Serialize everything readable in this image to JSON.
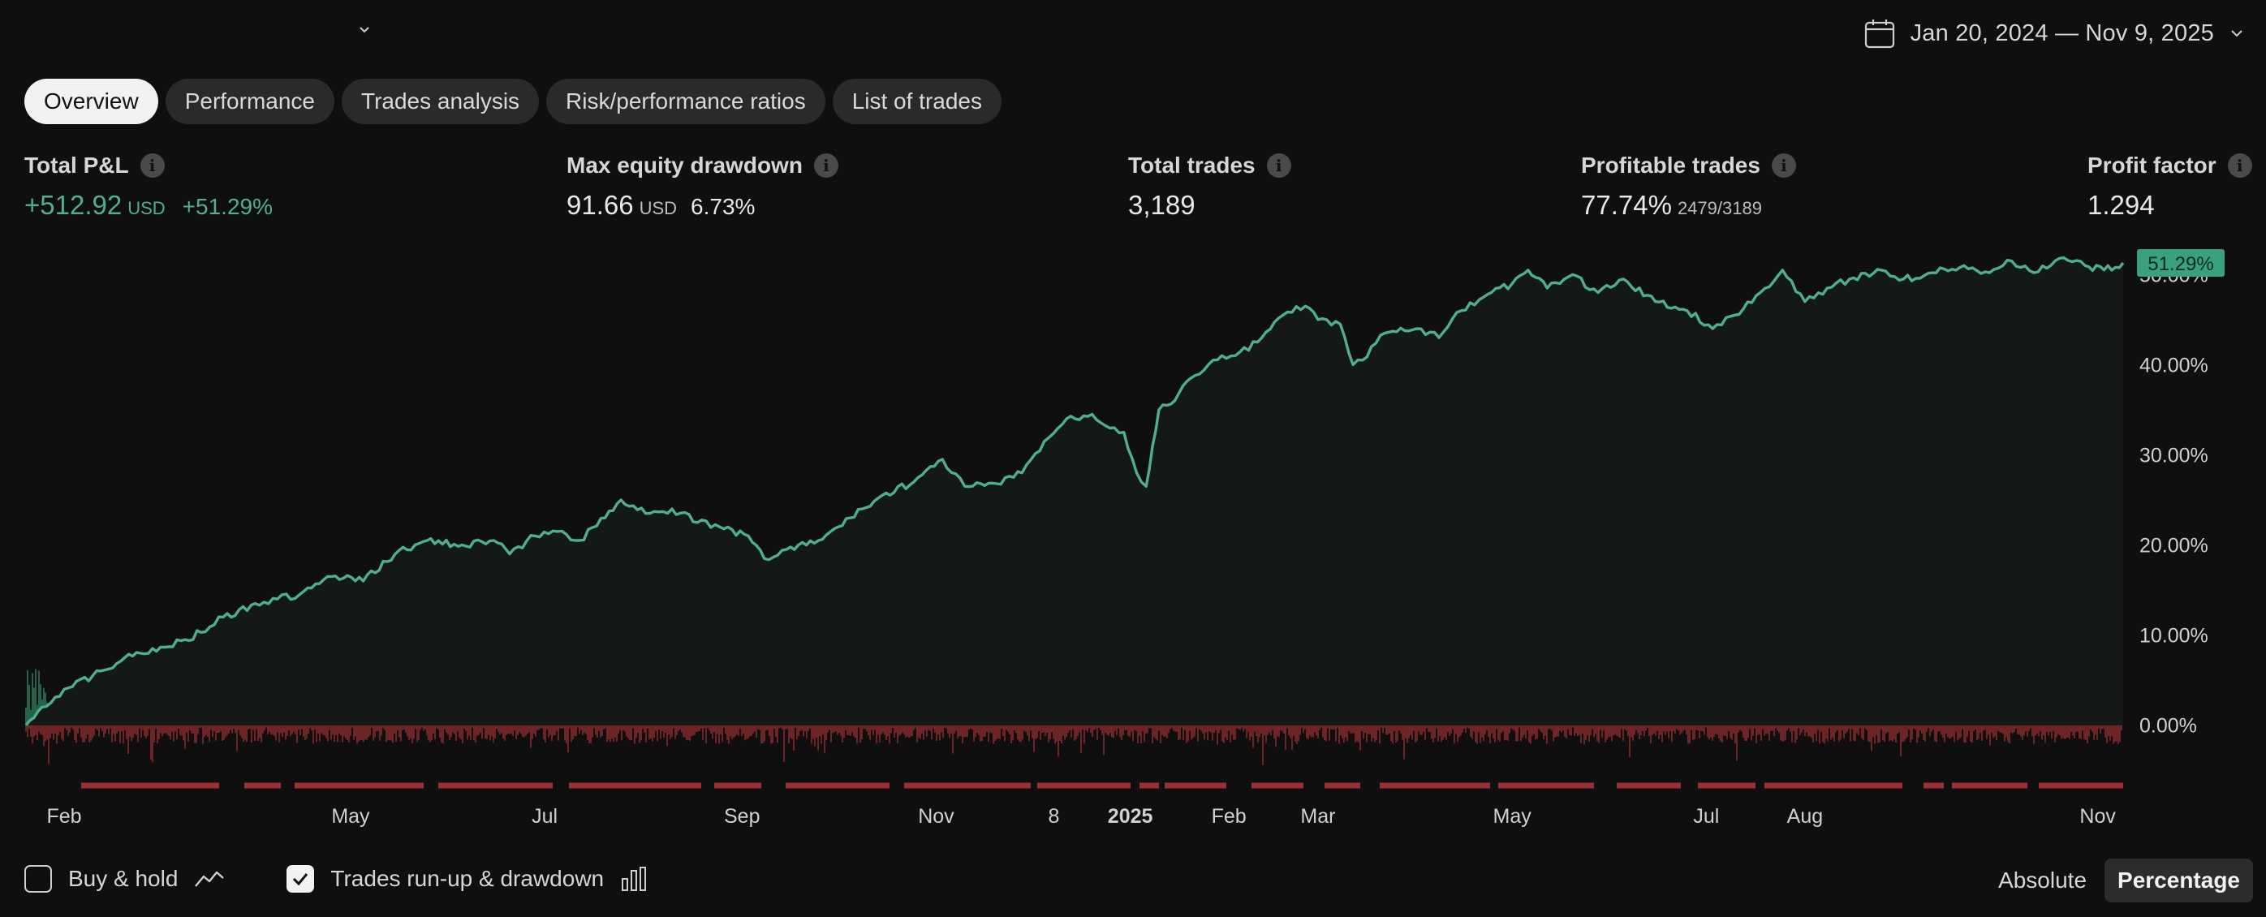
{
  "header": {
    "date_range": "Jan 20, 2024 — Nov 9, 2025"
  },
  "tabs": [
    {
      "label": "Overview",
      "active": true
    },
    {
      "label": "Performance",
      "active": false
    },
    {
      "label": "Trades analysis",
      "active": false
    },
    {
      "label": "Risk/performance ratios",
      "active": false
    },
    {
      "label": "List of trades",
      "active": false
    }
  ],
  "metrics": {
    "total_pnl": {
      "label": "Total P&L",
      "value": "+512.92",
      "unit": "USD",
      "pct": "+51.29%"
    },
    "max_drawdown": {
      "label": "Max equity drawdown",
      "value": "91.66",
      "unit": "USD",
      "pct": "6.73%"
    },
    "total_trades": {
      "label": "Total trades",
      "value": "3,189"
    },
    "profitable_trades": {
      "label": "Profitable trades",
      "value": "77.74%",
      "ratio": "2479/3189"
    },
    "profit_factor": {
      "label": "Profit factor",
      "value": "1.294"
    }
  },
  "colors": {
    "equity_line": "#4fae8e",
    "equity_fill": "#141917",
    "runup": "#2f8a6a",
    "drawdown": "#9a2f33",
    "badge_bg": "#3aa17f",
    "background": "#0f0f0f"
  },
  "chart_data": {
    "type": "line",
    "series": [
      {
        "values": [
          [
            "2024-01-20",
            0.0
          ],
          [
            "2024-01-25",
            2.0
          ],
          [
            "2024-02-01",
            4.0
          ],
          [
            "2024-02-10",
            5.5
          ],
          [
            "2024-02-20",
            7.5
          ],
          [
            "2024-03-01",
            8.2
          ],
          [
            "2024-03-10",
            9.5
          ],
          [
            "2024-03-15",
            10.3
          ],
          [
            "2024-03-22",
            12.0
          ],
          [
            "2024-04-01",
            13.5
          ],
          [
            "2024-04-08",
            14.0
          ],
          [
            "2024-04-15",
            14.5
          ],
          [
            "2024-04-25",
            16.5
          ],
          [
            "2024-05-05",
            16.0
          ],
          [
            "2024-05-15",
            19.0
          ],
          [
            "2024-05-25",
            20.5
          ],
          [
            "2024-06-05",
            20.0
          ],
          [
            "2024-06-15",
            20.5
          ],
          [
            "2024-06-20",
            19.0
          ],
          [
            "2024-06-28",
            21.0
          ],
          [
            "2024-07-05",
            21.5
          ],
          [
            "2024-07-12",
            20.5
          ],
          [
            "2024-07-20",
            23.0
          ],
          [
            "2024-07-25",
            25.0
          ],
          [
            "2024-08-03",
            23.5
          ],
          [
            "2024-08-10",
            24.0
          ],
          [
            "2024-08-18",
            22.5
          ],
          [
            "2024-08-25",
            22.0
          ],
          [
            "2024-09-03",
            21.0
          ],
          [
            "2024-09-08",
            18.5
          ],
          [
            "2024-09-15",
            19.5
          ],
          [
            "2024-09-25",
            20.5
          ],
          [
            "2024-10-05",
            23.0
          ],
          [
            "2024-10-15",
            25.5
          ],
          [
            "2024-10-25",
            27.0
          ],
          [
            "2024-11-03",
            29.5
          ],
          [
            "2024-11-10",
            26.5
          ],
          [
            "2024-11-20",
            26.8
          ],
          [
            "2024-11-28",
            28.0
          ],
          [
            "2024-12-05",
            31.5
          ],
          [
            "2024-12-12",
            34.0
          ],
          [
            "2024-12-20",
            34.5
          ],
          [
            "2024-12-27",
            33.0
          ],
          [
            "2024-12-30",
            32.5
          ],
          [
            "2025-01-03",
            28.0
          ],
          [
            "2025-01-06",
            26.5
          ],
          [
            "2025-01-08",
            31.0
          ],
          [
            "2025-01-10",
            35.0
          ],
          [
            "2025-01-15",
            36.0
          ],
          [
            "2025-01-20",
            38.5
          ],
          [
            "2025-01-27",
            40.5
          ],
          [
            "2025-02-03",
            41.0
          ],
          [
            "2025-02-10",
            42.5
          ],
          [
            "2025-02-18",
            45.5
          ],
          [
            "2025-02-25",
            46.5
          ],
          [
            "2025-03-01",
            45.0
          ],
          [
            "2025-03-08",
            44.5
          ],
          [
            "2025-03-12",
            40.0
          ],
          [
            "2025-03-15",
            40.5
          ],
          [
            "2025-03-22",
            43.5
          ],
          [
            "2025-04-01",
            44.0
          ],
          [
            "2025-04-08",
            43.0
          ],
          [
            "2025-04-15",
            46.0
          ],
          [
            "2025-04-22",
            47.5
          ],
          [
            "2025-05-01",
            49.0
          ],
          [
            "2025-05-06",
            50.5
          ],
          [
            "2025-05-12",
            48.5
          ],
          [
            "2025-05-20",
            50.0
          ],
          [
            "2025-05-28",
            48.0
          ],
          [
            "2025-06-05",
            49.5
          ],
          [
            "2025-06-15",
            47.0
          ],
          [
            "2025-06-25",
            46.0
          ],
          [
            "2025-07-03",
            44.0
          ],
          [
            "2025-07-10",
            45.5
          ],
          [
            "2025-07-18",
            48.0
          ],
          [
            "2025-07-25",
            50.5
          ],
          [
            "2025-08-01",
            47.0
          ],
          [
            "2025-08-08",
            48.5
          ],
          [
            "2025-08-15",
            49.5
          ],
          [
            "2025-08-25",
            50.5
          ],
          [
            "2025-09-01",
            49.5
          ],
          [
            "2025-09-10",
            50.2
          ],
          [
            "2025-09-20",
            51.0
          ],
          [
            "2025-09-28",
            50.2
          ],
          [
            "2025-10-05",
            51.5
          ],
          [
            "2025-10-12",
            50.2
          ],
          [
            "2025-10-20",
            51.8
          ],
          [
            "2025-10-28",
            51.0
          ],
          [
            "2025-11-03",
            50.5
          ],
          [
            "2025-11-09",
            51.29
          ]
        ]
      }
    ],
    "y_ticks": [
      "0.00%",
      "10.00%",
      "20.00%",
      "30.00%",
      "40.00%",
      "50.00%"
    ],
    "x_ticks": [
      {
        "label": "Feb",
        "date": "2024-02-01",
        "bold": false
      },
      {
        "label": "May",
        "date": "2024-05-01",
        "bold": false
      },
      {
        "label": "Jul",
        "date": "2024-07-01",
        "bold": false
      },
      {
        "label": "Sep",
        "date": "2024-09-01",
        "bold": false
      },
      {
        "label": "Nov",
        "date": "2024-11-01",
        "bold": false
      },
      {
        "label": "8",
        "date": "2024-12-08",
        "bold": false
      },
      {
        "label": "2025",
        "date": "2025-01-01",
        "bold": true
      },
      {
        "label": "Feb",
        "date": "2025-02-01",
        "bold": false
      },
      {
        "label": "Mar",
        "date": "2025-03-01",
        "bold": false
      },
      {
        "label": "May",
        "date": "2025-05-01",
        "bold": false
      },
      {
        "label": "Jul",
        "date": "2025-07-01",
        "bold": false
      },
      {
        "label": "Aug",
        "date": "2025-08-01",
        "bold": false
      },
      {
        "label": "Nov",
        "date": "2025-11-01",
        "bold": false
      }
    ],
    "last_value_label": "51.29%",
    "x_range": [
      "2024-01-20",
      "2025-11-09"
    ],
    "ylim": [
      -7.5,
      53
    ]
  },
  "footer": {
    "buy_hold_label": "Buy & hold",
    "runup_label": "Trades run-up & drawdown",
    "buy_hold_checked": false,
    "runup_checked": true,
    "absolute_label": "Absolute",
    "percentage_label": "Percentage",
    "active_mode": "Percentage"
  }
}
